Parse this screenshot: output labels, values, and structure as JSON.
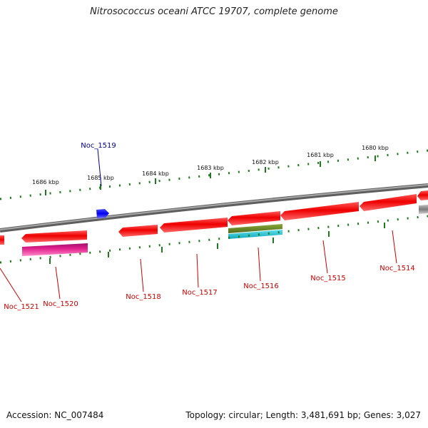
{
  "title": "Nitrosococcus oceani ATCC 19707, complete genome",
  "footer": {
    "accession": "Accession: NC_007484",
    "summary": "Topology: circular; Length: 3,481,691 bp; Genes: 3,027"
  },
  "colors": {
    "backbone": "#8a8a8a",
    "ticks": "#1f7a1f",
    "gene_forward": "#1010e0",
    "gene_reverse": "#e00000",
    "label_forward": "#00008b",
    "label_reverse": "#cc0000",
    "feature_magenta": "#e0208c",
    "feature_olive": "#6b8e23",
    "feature_cyan": "#20c0d0"
  },
  "map": {
    "kbp_labels": [
      "1686 kbp",
      "1685 kbp",
      "1684 kbp",
      "1683 kbp",
      "1682 kbp",
      "1681 kbp",
      "1680 kbp"
    ],
    "genes": [
      {
        "name": "Noc_1521",
        "strand": "reverse"
      },
      {
        "name": "Noc_1520",
        "strand": "reverse"
      },
      {
        "name": "Noc_1519",
        "strand": "forward"
      },
      {
        "name": "Noc_1518",
        "strand": "reverse"
      },
      {
        "name": "Noc_1517",
        "strand": "reverse"
      },
      {
        "name": "Noc_1516",
        "strand": "reverse"
      },
      {
        "name": "Noc_1515",
        "strand": "reverse"
      },
      {
        "name": "Noc_1514",
        "strand": "reverse"
      }
    ]
  }
}
